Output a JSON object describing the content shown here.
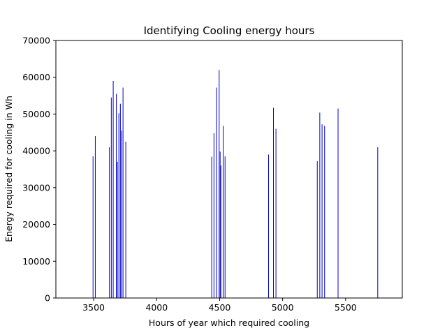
{
  "chart_data": {
    "type": "bar",
    "title": "Identifying Cooling energy hours",
    "xlabel": "Hours of year which required cooling",
    "ylabel": "Energy required for cooling in Wh",
    "xlim": [
      3200,
      5950
    ],
    "ylim": [
      0,
      70000
    ],
    "xticks": [
      3500,
      4000,
      4500,
      5000,
      5500
    ],
    "yticks": [
      0,
      10000,
      20000,
      30000,
      40000,
      50000,
      60000,
      70000
    ],
    "grid": false,
    "bar_color": "#0000cc",
    "series": [
      {
        "x": [
          3495,
          3513,
          3625,
          3640,
          3655,
          3680,
          3688,
          3700,
          3712,
          3722,
          3733,
          3755,
          4437,
          4455,
          4475,
          4496,
          4504,
          4510,
          4528,
          4543,
          4888,
          4927,
          4947,
          5275,
          5295,
          5313,
          5333,
          5440,
          5755
        ],
        "values": [
          38500,
          44000,
          41000,
          54500,
          59000,
          55500,
          37000,
          50200,
          52800,
          45500,
          57200,
          42500,
          38400,
          44800,
          57200,
          62000,
          39800,
          36000,
          46800,
          38500,
          39000,
          51700,
          46000,
          37200,
          50400,
          47200,
          46800,
          51500,
          41000
        ]
      }
    ]
  }
}
